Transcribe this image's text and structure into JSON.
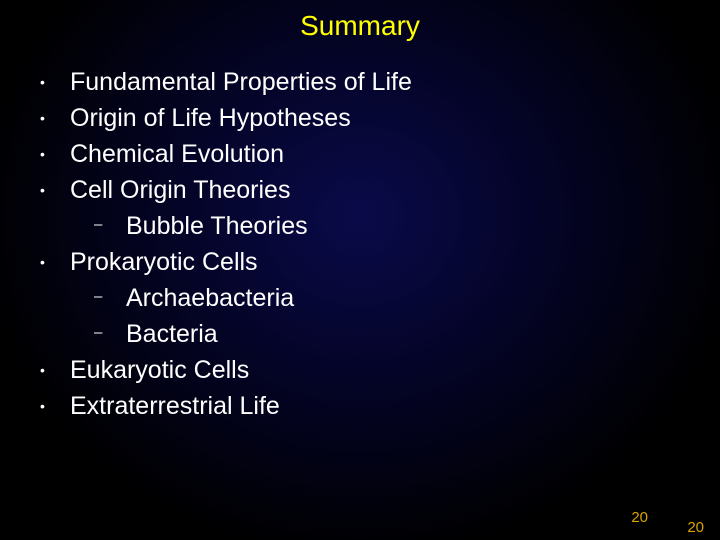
{
  "title": "Summary",
  "items": [
    {
      "text": "Fundamental Properties of Life"
    },
    {
      "text": "Origin of Life Hypotheses"
    },
    {
      "text": "Chemical Evolution"
    },
    {
      "text": "Cell Origin Theories",
      "sub": [
        "Bubble Theories"
      ]
    },
    {
      "text": "Prokaryotic Cells",
      "sub": [
        "Archaebacteria",
        "Bacteria"
      ]
    },
    {
      "text": "Eukaryotic Cells"
    },
    {
      "text": "Extraterrestrial Life"
    }
  ],
  "pageNumber1": "20",
  "pageNumber2": "20",
  "colors": {
    "title": "#ffff00",
    "body": "#ffffff",
    "pageNum": "#d9a300",
    "bgCenter": "#0a0a4a",
    "bgEdge": "#000000"
  },
  "fonts": {
    "titleSize": 28,
    "bodySize": 25
  }
}
